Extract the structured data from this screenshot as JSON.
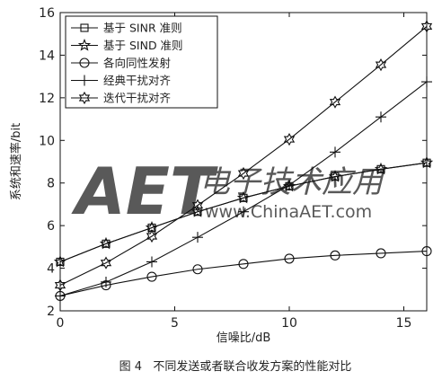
{
  "chart_data": {
    "type": "line",
    "xlabel": "信噪比/dB",
    "ylabel": "系统和速率/bit",
    "xlim": [
      0,
      16
    ],
    "ylim": [
      2,
      16
    ],
    "xticks": [
      0,
      5,
      10,
      15
    ],
    "yticks": [
      2,
      4,
      6,
      8,
      10,
      12,
      14,
      16
    ],
    "grid": false,
    "legend_position": "top-left",
    "x": [
      0,
      2,
      4,
      6,
      8,
      10,
      12,
      14,
      16
    ],
    "series": [
      {
        "name": "基于 SINR 准则",
        "marker": "square",
        "values": [
          4.3,
          5.15,
          5.9,
          6.65,
          7.3,
          7.85,
          8.3,
          8.65,
          8.95
        ]
      },
      {
        "name": "基于 SIND 准则",
        "marker": "star",
        "values": [
          4.3,
          5.15,
          5.9,
          6.65,
          7.3,
          7.85,
          8.3,
          8.65,
          8.95
        ]
      },
      {
        "name": "各向同性发射",
        "marker": "circle",
        "values": [
          2.7,
          3.2,
          3.6,
          3.95,
          4.2,
          4.45,
          4.6,
          4.7,
          4.8
        ]
      },
      {
        "name": "经典干扰对齐",
        "marker": "plus",
        "values": [
          2.7,
          3.35,
          4.3,
          5.45,
          6.65,
          7.9,
          9.45,
          11.1,
          12.75
        ]
      },
      {
        "name": "迭代干扰对齐",
        "marker": "hexagram",
        "values": [
          3.2,
          4.25,
          5.5,
          6.95,
          8.45,
          10.05,
          11.8,
          13.55,
          15.35
        ]
      }
    ]
  },
  "caption": "图 4   不同发送或者联合收发方案的性能对比",
  "watermark": {
    "logo_text": "AET",
    "chinese_text": "电子技术应用",
    "url_text": "www.ChinaAET.com",
    "color": "#e8818b"
  }
}
